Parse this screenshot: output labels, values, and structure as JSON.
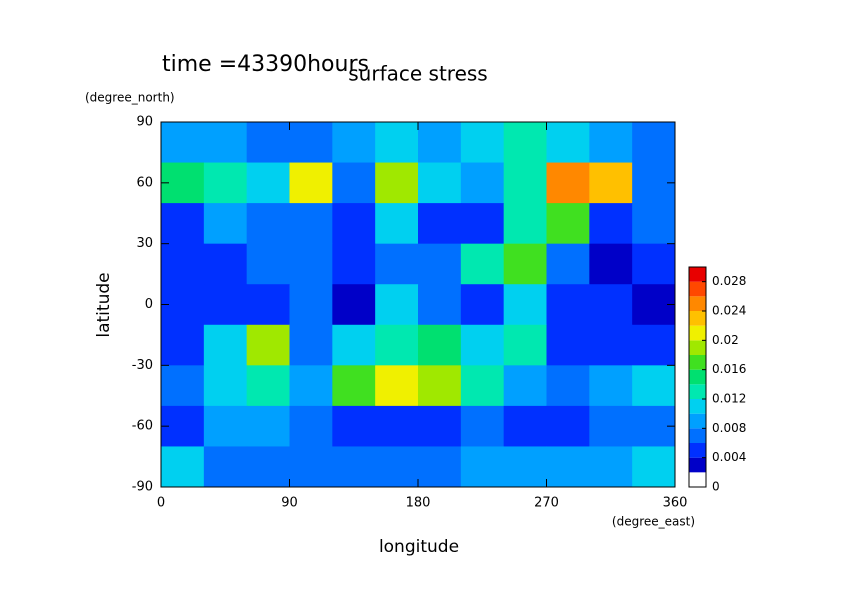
{
  "chart_data": {
    "type": "heatmap",
    "title": "surface stress",
    "subtitle": "time =43390hours",
    "xlabel": "longitude",
    "xunit": "(degree_east)",
    "ylabel": "latitude",
    "yunit": "(degree_north)",
    "x": [
      15,
      45,
      75,
      105,
      135,
      165,
      195,
      225,
      255,
      285,
      315,
      345
    ],
    "y": [
      80,
      60,
      40,
      20,
      0,
      -20,
      -40,
      -60,
      -80
    ],
    "z": [
      [
        0.008,
        0.008,
        0.006,
        0.006,
        0.008,
        0.01,
        0.008,
        0.01,
        0.012,
        0.01,
        0.008,
        0.006
      ],
      [
        0.014,
        0.012,
        0.01,
        0.02,
        0.006,
        0.018,
        0.01,
        0.008,
        0.012,
        0.024,
        0.022,
        0.006
      ],
      [
        0.004,
        0.008,
        0.006,
        0.006,
        0.004,
        0.01,
        0.004,
        0.004,
        0.012,
        0.016,
        0.004,
        0.006
      ],
      [
        0.004,
        0.005,
        0.006,
        0.006,
        0.004,
        0.006,
        0.006,
        0.012,
        0.016,
        0.006,
        0.003,
        0.004
      ],
      [
        0.005,
        0.004,
        0.004,
        0.006,
        0.003,
        0.01,
        0.006,
        0.004,
        0.01,
        0.004,
        0.004,
        0.003
      ],
      [
        0.004,
        0.01,
        0.018,
        0.006,
        0.01,
        0.012,
        0.014,
        0.01,
        0.012,
        0.004,
        0.004,
        0.005
      ],
      [
        0.006,
        0.01,
        0.012,
        0.008,
        0.016,
        0.02,
        0.018,
        0.012,
        0.008,
        0.006,
        0.008,
        0.01
      ],
      [
        0.005,
        0.008,
        0.008,
        0.006,
        0.004,
        0.004,
        0.004,
        0.006,
        0.004,
        0.005,
        0.006,
        0.006
      ],
      [
        0.01,
        0.006,
        0.006,
        0.006,
        0.006,
        0.006,
        0.006,
        0.008,
        0.008,
        0.008,
        0.008,
        0.01
      ]
    ],
    "xlim": [
      0,
      360
    ],
    "xticks": [
      0,
      90,
      180,
      270,
      360
    ],
    "ylim": [
      -90,
      90
    ],
    "yticks": [
      -90,
      -60,
      -30,
      0,
      30,
      60,
      90
    ],
    "levels": [
      0,
      0.002,
      0.004,
      0.006,
      0.008,
      0.01,
      0.012,
      0.014,
      0.016,
      0.018,
      0.02,
      0.022,
      0.024,
      0.026,
      0.028,
      0.03
    ],
    "colors": [
      "#ffffff",
      "#0000c8",
      "#0030ff",
      "#0070ff",
      "#00a0ff",
      "#00d0f0",
      "#00e8b0",
      "#00e070",
      "#40e020",
      "#a0e800",
      "#f0f000",
      "#ffc000",
      "#ff8800",
      "#ff4800",
      "#e80000"
    ],
    "cbar_ticks": [
      0,
      0.004,
      0.008,
      0.012,
      0.016,
      0.02,
      0.024,
      0.028
    ]
  }
}
